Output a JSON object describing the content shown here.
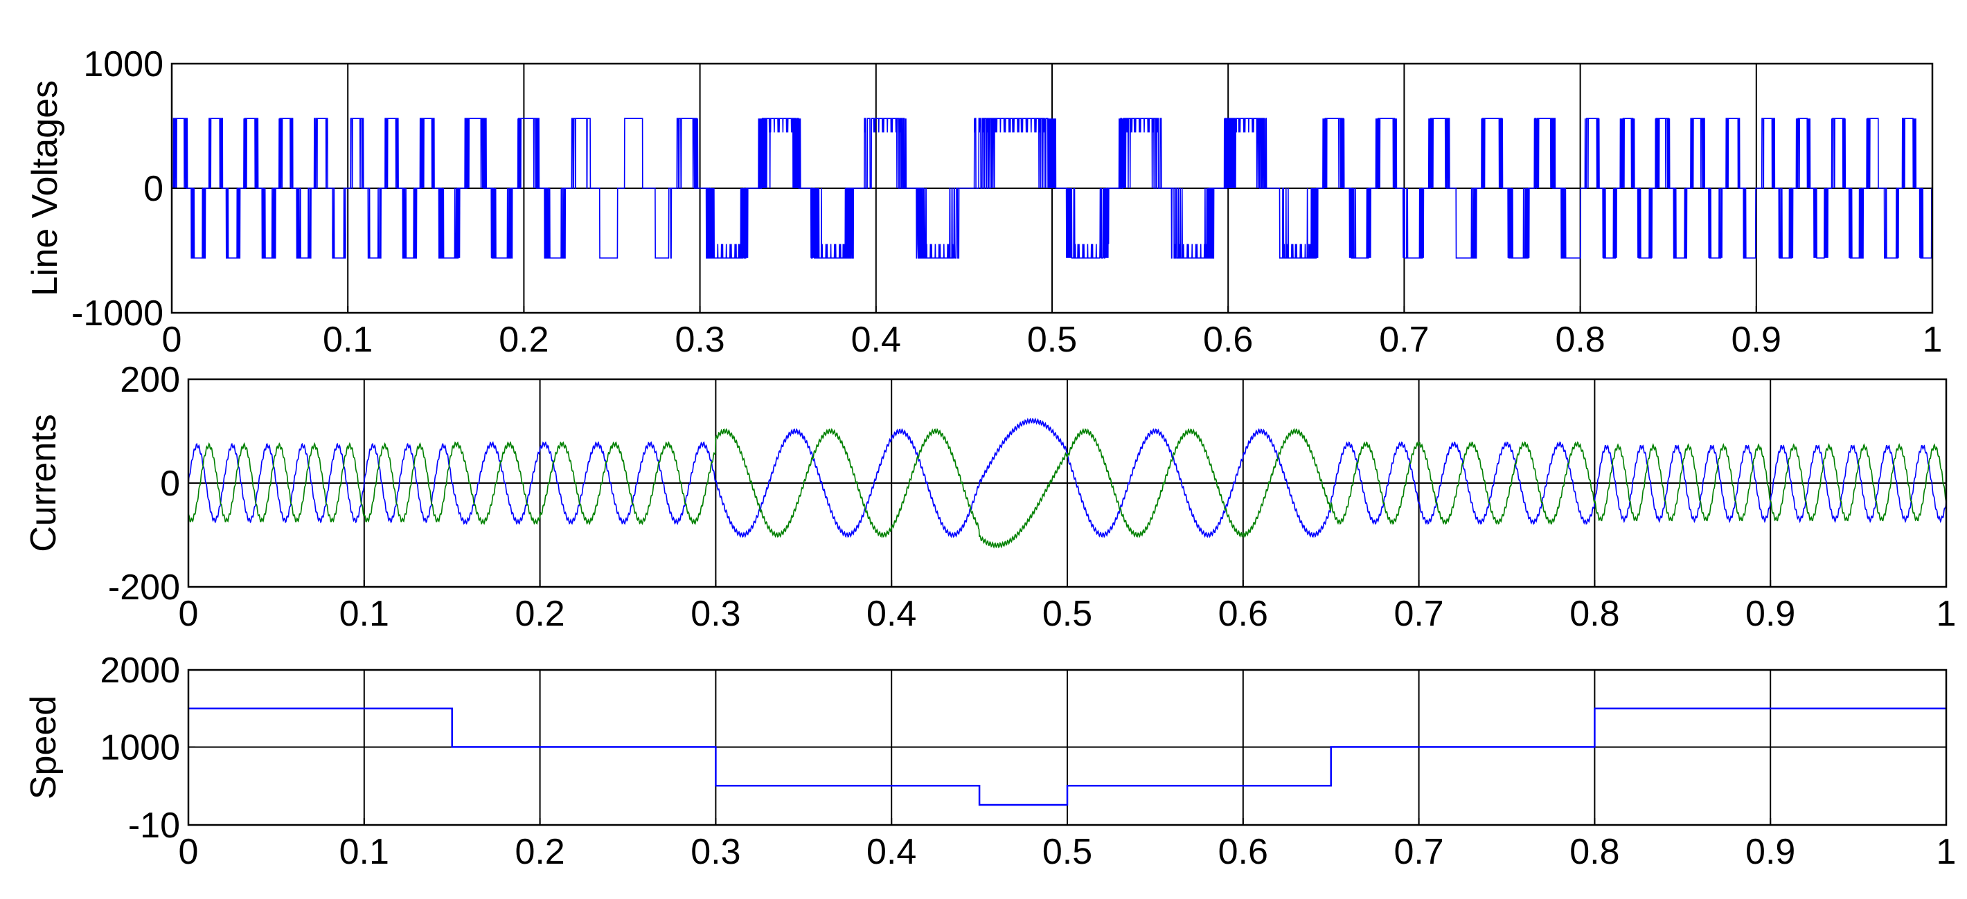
{
  "chart_data": [
    {
      "type": "line",
      "ylabel": "Line Voltages",
      "xlim": [
        0,
        1
      ],
      "ylim": [
        -1000,
        1000
      ],
      "xticks": [
        "0",
        "0.1",
        "0.2",
        "0.3",
        "0.4",
        "0.5",
        "0.6",
        "0.7",
        "0.8",
        "0.9",
        "1"
      ],
      "yticks": [
        "-1000",
        "0",
        "1000"
      ],
      "grid": true,
      "series": [
        {
          "color": "#0000ff",
          "waveform": "pwm-line-voltage",
          "levels": [
            -560,
            0,
            560
          ],
          "fundamental_hz": [
            [
              0,
              0.15,
              50
            ],
            [
              0.15,
              0.3,
              33.3
            ],
            [
              0.3,
              0.45,
              16.7
            ],
            [
              0.45,
              0.5,
              8.3
            ],
            [
              0.5,
              0.65,
              16.7
            ],
            [
              0.65,
              0.8,
              33.3
            ],
            [
              0.8,
              1,
              50
            ]
          ]
        }
      ]
    },
    {
      "type": "line",
      "ylabel": "Currents",
      "xlim": [
        0,
        1
      ],
      "ylim": [
        -200,
        200
      ],
      "xticks": [
        "0",
        "0.1",
        "0.2",
        "0.3",
        "0.4",
        "0.5",
        "0.6",
        "0.7",
        "0.8",
        "0.9",
        "1"
      ],
      "yticks": [
        "-200",
        "0",
        "200"
      ],
      "grid": true,
      "series": [
        {
          "color": "#0000ff",
          "waveform": "sine",
          "phase_deg": 0,
          "amplitude_segments": [
            [
              0,
              0.15,
              72
            ],
            [
              0.15,
              0.3,
              75
            ],
            [
              0.3,
              0.45,
              100
            ],
            [
              0.45,
              0.5,
              120
            ],
            [
              0.5,
              0.65,
              100
            ],
            [
              0.65,
              0.8,
              75
            ],
            [
              0.8,
              1,
              70
            ]
          ],
          "frequency_segments": [
            [
              0,
              0.15,
              50
            ],
            [
              0.15,
              0.3,
              33.3
            ],
            [
              0.3,
              0.45,
              16.7
            ],
            [
              0.45,
              0.5,
              8.3
            ],
            [
              0.5,
              0.65,
              16.7
            ],
            [
              0.65,
              0.8,
              33.3
            ],
            [
              0.8,
              1,
              50
            ]
          ]
        },
        {
          "color": "#008000",
          "waveform": "sine",
          "phase_deg": -120,
          "amplitude_segments": [
            [
              0,
              0.15,
              72
            ],
            [
              0.15,
              0.3,
              75
            ],
            [
              0.3,
              0.45,
              100
            ],
            [
              0.45,
              0.5,
              120
            ],
            [
              0.5,
              0.65,
              100
            ],
            [
              0.65,
              0.8,
              75
            ],
            [
              0.8,
              1,
              70
            ]
          ],
          "frequency_segments": [
            [
              0,
              0.15,
              50
            ],
            [
              0.15,
              0.3,
              33.3
            ],
            [
              0.3,
              0.45,
              16.7
            ],
            [
              0.45,
              0.5,
              8.3
            ],
            [
              0.5,
              0.65,
              16.7
            ],
            [
              0.65,
              0.8,
              33.3
            ],
            [
              0.8,
              1,
              50
            ]
          ]
        }
      ]
    },
    {
      "type": "line",
      "ylabel": "Speed",
      "xlim": [
        0,
        1
      ],
      "ylim": [
        -10,
        2000
      ],
      "xticks": [
        "0",
        "0.1",
        "0.2",
        "0.3",
        "0.4",
        "0.5",
        "0.6",
        "0.7",
        "0.8",
        "0.9",
        "1"
      ],
      "yticks": [
        "-10",
        "1000",
        "2000"
      ],
      "grid": true,
      "series": [
        {
          "color": "#0000ff",
          "waveform": "step",
          "x": [
            0,
            0.15,
            0.15,
            0.3,
            0.3,
            0.45,
            0.45,
            0.5,
            0.5,
            0.65,
            0.65,
            0.8,
            0.8,
            1
          ],
          "y": [
            1500,
            1500,
            1000,
            1000,
            500,
            500,
            250,
            250,
            500,
            500,
            1000,
            1000,
            1500,
            1500
          ]
        }
      ]
    }
  ]
}
